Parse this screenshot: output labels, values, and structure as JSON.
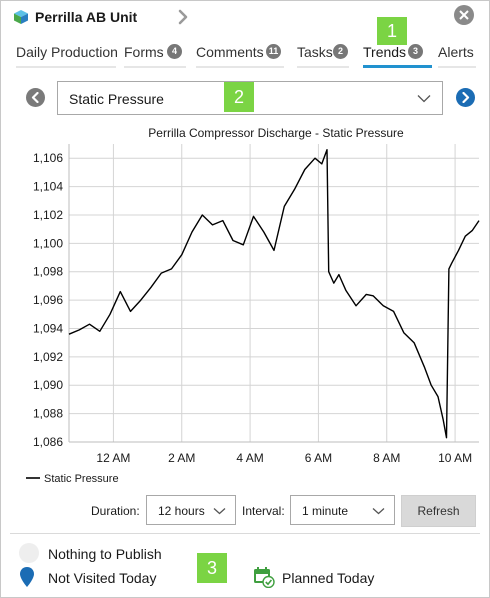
{
  "header": {
    "title": "Perrilla AB Unit"
  },
  "tabs": [
    {
      "label": "Daily Production",
      "count": ""
    },
    {
      "label": "Forms",
      "count": "4"
    },
    {
      "label": "Comments",
      "count": "11"
    },
    {
      "label": "Tasks",
      "count": "2"
    },
    {
      "label": "Trends",
      "count": "3"
    },
    {
      "label": "Alerts",
      "count": ""
    }
  ],
  "active_tab": "Trends",
  "selector": {
    "value": "Static Pressure"
  },
  "callouts": [
    "1",
    "2",
    "3"
  ],
  "chart_data": {
    "type": "line",
    "title": "Perrilla Compressor Discharge - Static Pressure",
    "x_tick_labels": [
      "12 AM",
      "2 AM",
      "4 AM",
      "6 AM",
      "8 AM",
      "10 AM"
    ],
    "y_tick_labels": [
      "1,106",
      "1,104",
      "1,102",
      "1,100",
      "1,098",
      "1,096",
      "1,094",
      "1,092",
      "1,090",
      "1,088",
      "1,086"
    ],
    "ylim": [
      1086,
      1107
    ],
    "xlim_hours_from_midnight": [
      -1.3,
      10.7
    ],
    "grid": true,
    "legend": "bottom-left",
    "series": [
      {
        "name": "Static Pressure",
        "color": "#000000",
        "x": [
          -1.3,
          -1.0,
          -0.7,
          -0.4,
          -0.1,
          0.2,
          0.5,
          0.8,
          1.1,
          1.4,
          1.7,
          2.0,
          2.3,
          2.6,
          2.9,
          3.2,
          3.5,
          3.8,
          4.1,
          4.4,
          4.7,
          5.0,
          5.3,
          5.6,
          5.9,
          6.1,
          6.25,
          6.3,
          6.45,
          6.6,
          6.8,
          7.1,
          7.4,
          7.6,
          7.9,
          8.2,
          8.5,
          8.8,
          9.1,
          9.3,
          9.5,
          9.65,
          9.75,
          9.82,
          9.9,
          10.1,
          10.3,
          10.5,
          10.7
        ],
        "values": [
          1093.6,
          1093.9,
          1094.3,
          1093.8,
          1095.0,
          1096.6,
          1095.2,
          1096.0,
          1096.9,
          1097.9,
          1098.2,
          1099.2,
          1100.8,
          1102.0,
          1101.3,
          1101.6,
          1100.2,
          1099.9,
          1101.9,
          1100.8,
          1099.5,
          1102.6,
          1103.8,
          1105.2,
          1106.0,
          1105.6,
          1106.6,
          1098.0,
          1097.2,
          1097.8,
          1096.7,
          1095.6,
          1096.4,
          1096.3,
          1095.6,
          1095.2,
          1093.7,
          1093.0,
          1091.3,
          1090.0,
          1089.2,
          1087.6,
          1086.3,
          1098.2,
          1098.6,
          1099.5,
          1100.5,
          1100.9,
          1101.6
        ]
      }
    ]
  },
  "controls": {
    "duration_label": "Duration:",
    "duration_value": "12 hours",
    "interval_label": "Interval:",
    "interval_value": "1 minute",
    "refresh_label": "Refresh"
  },
  "footer": {
    "nothing_to_publish": "Nothing to Publish",
    "not_visited": "Not Visited Today",
    "planned": "Planned Today"
  },
  "colors": {
    "accent": "#2192cf",
    "nav_next": "#1b6cb4",
    "callout": "#7bd444",
    "pin": "#1b6cb4",
    "planned": "#3f9f3f",
    "app_icon_top": "#5cc1e6",
    "app_icon_left": "#4aa84a",
    "app_icon_right": "#2a7fc0"
  },
  "icons": {
    "app": "cube-icon",
    "header_nav": "chevron-right-icon",
    "close": "close-icon",
    "prev": "chevron-left-icon",
    "next": "chevron-right-icon",
    "dropdown": "chevron-down-icon",
    "not_visited": "map-pin-icon",
    "planned": "calendar-check-icon"
  }
}
